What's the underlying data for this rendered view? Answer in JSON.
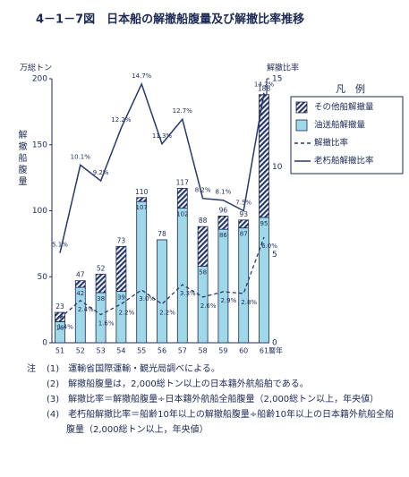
{
  "chart_data": {
    "type": "bar",
    "title": "4－1－7図　日本船の解撤船腹量及び解撤比率推移",
    "y_unit": "万総トン",
    "ylabel": "解撤船腹量",
    "y2label": "解撤比率",
    "xlabel": "暦年",
    "categories": [
      "51",
      "52",
      "53",
      "54",
      "55",
      "56",
      "57",
      "58",
      "59",
      "60",
      "61"
    ],
    "ylim": [
      0,
      200
    ],
    "yticks": [
      0,
      50,
      100,
      150,
      200
    ],
    "y2lim": [
      0,
      15
    ],
    "y2ticks": [
      0,
      5,
      10,
      15
    ],
    "legend_title": "凡　例",
    "totals": [
      23,
      47,
      52,
      73,
      110,
      78,
      117,
      88,
      96,
      93,
      188
    ],
    "series": [
      {
        "name": "油送船解撤量",
        "type": "bar",
        "color": "#9fd8e8",
        "values": [
          16,
          42,
          38,
          39,
          107,
          78,
          102,
          58,
          86,
          87,
          95
        ]
      },
      {
        "name": "その他船解撤量",
        "type": "bar",
        "color": "#27386e",
        "pattern": "hatch",
        "values": [
          7,
          5,
          14,
          34,
          3,
          0,
          15,
          30,
          10,
          6,
          93
        ]
      },
      {
        "name": "解撤比率",
        "type": "line",
        "axis": "y2",
        "style": "dashed",
        "color": "#27386e",
        "values": [
          1.4,
          2.4,
          1.6,
          2.2,
          3.0,
          2.2,
          3.3,
          2.6,
          2.9,
          2.8,
          6.0
        ],
        "value_labels": [
          "1.4%",
          "2.4%",
          "1.6%",
          "2.2%",
          "3.0%",
          "2.2%",
          "3.3%",
          "2.6%",
          "2.9%",
          "2.8%",
          "6.0%"
        ]
      },
      {
        "name": "老朽船解撤比率",
        "type": "line",
        "axis": "y2",
        "style": "solid",
        "color": "#27386e",
        "values": [
          5.1,
          10.1,
          9.2,
          12.2,
          14.7,
          11.3,
          12.7,
          8.2,
          8.1,
          7.5,
          14.2
        ],
        "value_labels": [
          "5.1%",
          "10.1%",
          "9.2%",
          "12.2%",
          "14.7%",
          "11.3%",
          "12.7%",
          "8.2%",
          "8.1%",
          "7.5%",
          "14.2%"
        ]
      }
    ]
  },
  "notes": {
    "label": "注",
    "items": [
      "(1)　運輸省国際運輸・観光局調べによる。",
      "(2)　解撤船腹量は，2,000総トン以上の日本籍外航船舶である。",
      "(3)　解撤比率＝解撤船腹量÷日本籍外航船全船腹量（2,000総トン以上，年央値）",
      "(4)　老朽船解撤比率＝船齢10年以上の解撤船腹量÷船齢10年以上の日本籍外航船全船腹量（2,000総トン以上，年央値）"
    ]
  }
}
